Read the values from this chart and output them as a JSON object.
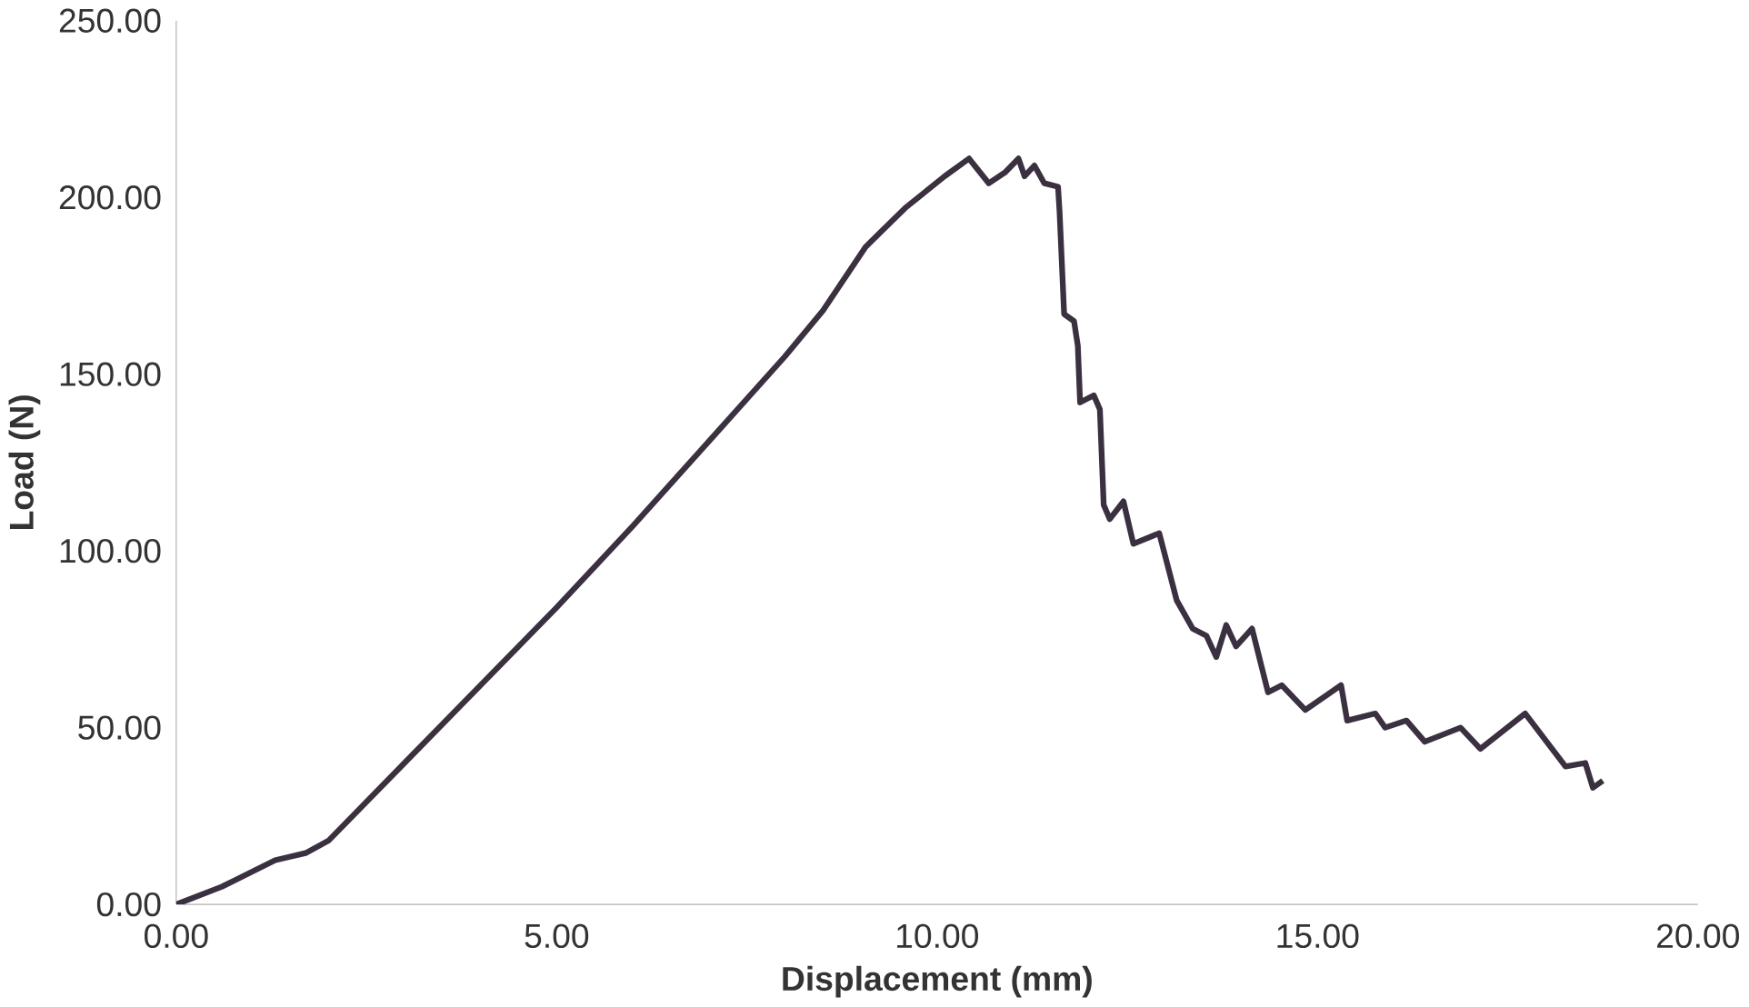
{
  "chart_data": {
    "type": "line",
    "xlabel": "Displacement (mm)",
    "ylabel": "Load (N)",
    "xlim": [
      0,
      20
    ],
    "ylim": [
      0,
      250
    ],
    "xticks": [
      {
        "value": 0,
        "label": "0.00"
      },
      {
        "value": 5,
        "label": "5.00"
      },
      {
        "value": 10,
        "label": "10.00"
      },
      {
        "value": 15,
        "label": "15.00"
      },
      {
        "value": 20,
        "label": "20.00"
      }
    ],
    "yticks": [
      {
        "value": 0,
        "label": "0.00"
      },
      {
        "value": 50,
        "label": "50.00"
      },
      {
        "value": 100,
        "label": "100.00"
      },
      {
        "value": 150,
        "label": "150.00"
      },
      {
        "value": 200,
        "label": "200.00"
      },
      {
        "value": 250,
        "label": "250.00"
      }
    ],
    "grid": false,
    "legend": false,
    "marker": "none",
    "line_style": "solid",
    "series": [
      {
        "color": "#3b3040",
        "x": [
          0,
          0.6,
          1.3,
          1.5,
          1.7,
          2.0,
          3.0,
          4.0,
          5.0,
          6.0,
          7.0,
          8.0,
          8.5,
          9.06,
          9.58,
          10.1,
          10.42,
          10.68,
          10.89,
          11.07,
          11.15,
          11.28,
          11.41,
          11.59,
          11.61,
          11.67,
          11.8,
          11.85,
          11.88,
          12.06,
          12.14,
          12.19,
          12.27,
          12.45,
          12.58,
          12.92,
          13.15,
          13.36,
          13.54,
          13.67,
          13.8,
          13.93,
          14.14,
          14.35,
          14.53,
          14.84,
          15.31,
          15.39,
          15.76,
          15.89,
          16.17,
          16.41,
          16.88,
          17.14,
          17.73,
          18.26,
          18.52,
          18.62,
          18.75
        ],
        "values": [
          0,
          5,
          12.5,
          13.5,
          14.5,
          18,
          40,
          62,
          84,
          107,
          131,
          155,
          168,
          186,
          197,
          206,
          211,
          204,
          207,
          211,
          206,
          209,
          204,
          203,
          196,
          167,
          165,
          158,
          142,
          144,
          140,
          113,
          109,
          114,
          102,
          105,
          86,
          78,
          76,
          70,
          79,
          73,
          78,
          60,
          62,
          55,
          62,
          52,
          54,
          50,
          52,
          46,
          50,
          44,
          54,
          39,
          40,
          33,
          35
        ]
      }
    ]
  }
}
